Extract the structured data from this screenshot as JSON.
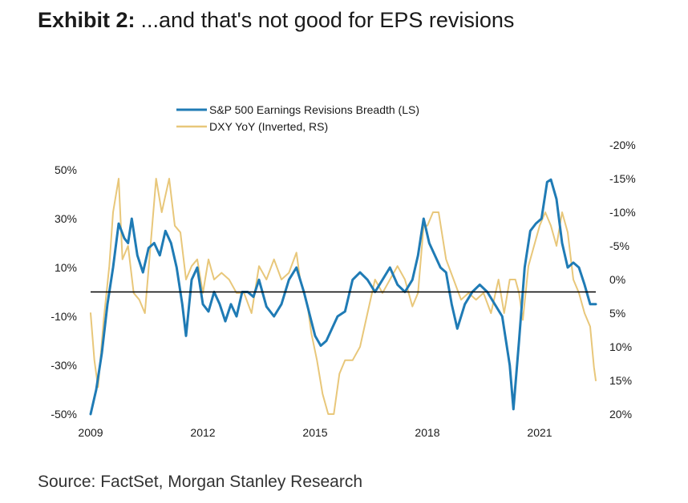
{
  "header": {
    "title_bold": "Exhibit 2:",
    "title_rest": "...and that's not good for EPS revisions"
  },
  "footer": {
    "source": "Source: FactSet, Morgan Stanley Research"
  },
  "chart_data": {
    "type": "line",
    "legend_position": "top-left",
    "grid": false,
    "x_ticks": [
      "2009",
      "2012",
      "2015",
      "2018",
      "2021"
    ],
    "xlim": [
      2009.0,
      2022.5
    ],
    "y_left": {
      "ticks": [
        "50%",
        "30%",
        "10%",
        "-10%",
        "-30%",
        "-50%"
      ],
      "ylim": [
        -50,
        50
      ]
    },
    "y_right": {
      "ticks": [
        "-20%",
        "-15%",
        "-10%",
        "-5%",
        "0%",
        "5%",
        "10%",
        "15%",
        "20%"
      ],
      "ylim": [
        -20,
        20
      ],
      "inverted": true
    },
    "zero_line": 0,
    "colors": {
      "breadth": "#1f7bb5",
      "dxy": "#e8c77a",
      "zero_line": "#000000"
    },
    "series": [
      {
        "name": "S&P 500 Earnings Revisions Breadth (LS)",
        "axis": "left",
        "x": [
          2009.0,
          2009.15,
          2009.3,
          2009.45,
          2009.6,
          2009.75,
          2009.9,
          2010.0,
          2010.1,
          2010.25,
          2010.4,
          2010.55,
          2010.7,
          2010.85,
          2011.0,
          2011.15,
          2011.3,
          2011.45,
          2011.55,
          2011.7,
          2011.85,
          2012.0,
          2012.15,
          2012.3,
          2012.45,
          2012.6,
          2012.75,
          2012.9,
          2013.05,
          2013.2,
          2013.35,
          2013.5,
          2013.7,
          2013.9,
          2014.1,
          2014.3,
          2014.5,
          2014.7,
          2014.9,
          2015.0,
          2015.15,
          2015.3,
          2015.45,
          2015.6,
          2015.8,
          2016.0,
          2016.2,
          2016.4,
          2016.6,
          2016.8,
          2017.0,
          2017.2,
          2017.4,
          2017.6,
          2017.75,
          2017.9,
          2018.05,
          2018.2,
          2018.35,
          2018.5,
          2018.65,
          2018.8,
          2019.0,
          2019.2,
          2019.4,
          2019.6,
          2019.8,
          2020.0,
          2020.1,
          2020.2,
          2020.3,
          2020.45,
          2020.6,
          2020.75,
          2020.9,
          2021.05,
          2021.2,
          2021.3,
          2021.45,
          2021.6,
          2021.75,
          2021.9,
          2022.05,
          2022.2,
          2022.35,
          2022.5
        ],
        "values": [
          -50,
          -40,
          -25,
          -5,
          10,
          28,
          22,
          20,
          30,
          15,
          8,
          18,
          20,
          15,
          25,
          20,
          10,
          -5,
          -18,
          5,
          10,
          -5,
          -8,
          0,
          -5,
          -12,
          -5,
          -10,
          0,
          0,
          -2,
          5,
          -6,
          -10,
          -5,
          5,
          10,
          0,
          -12,
          -18,
          -22,
          -20,
          -15,
          -10,
          -8,
          5,
          8,
          5,
          0,
          5,
          10,
          3,
          0,
          5,
          15,
          30,
          20,
          15,
          10,
          8,
          -5,
          -15,
          -5,
          0,
          3,
          0,
          -5,
          -10,
          -20,
          -30,
          -48,
          -20,
          10,
          25,
          28,
          30,
          45,
          46,
          38,
          20,
          10,
          12,
          10,
          3,
          -5,
          -5
        ]
      },
      {
        "name": "DXY YoY (Inverted, RS)",
        "axis": "right",
        "x": [
          2009.0,
          2009.1,
          2009.2,
          2009.35,
          2009.5,
          2009.6,
          2009.75,
          2009.85,
          2010.0,
          2010.15,
          2010.3,
          2010.45,
          2010.6,
          2010.75,
          2010.9,
          2011.1,
          2011.25,
          2011.4,
          2011.55,
          2011.7,
          2011.85,
          2012.0,
          2012.15,
          2012.3,
          2012.5,
          2012.7,
          2012.9,
          2013.1,
          2013.3,
          2013.5,
          2013.7,
          2013.9,
          2014.1,
          2014.3,
          2014.5,
          2014.6,
          2014.7,
          2014.8,
          2014.9,
          2015.05,
          2015.2,
          2015.35,
          2015.5,
          2015.65,
          2015.8,
          2016.0,
          2016.2,
          2016.4,
          2016.6,
          2016.8,
          2017.0,
          2017.2,
          2017.4,
          2017.6,
          2017.75,
          2017.9,
          2018.0,
          2018.15,
          2018.3,
          2018.5,
          2018.7,
          2018.9,
          2019.1,
          2019.3,
          2019.5,
          2019.7,
          2019.9,
          2020.05,
          2020.2,
          2020.35,
          2020.45,
          2020.55,
          2020.7,
          2020.85,
          2021.0,
          2021.15,
          2021.3,
          2021.45,
          2021.6,
          2021.75,
          2021.9,
          2022.05,
          2022.2,
          2022.35,
          2022.45,
          2022.5
        ],
        "values": [
          5,
          12,
          16,
          6,
          -2,
          -10,
          -15,
          -3,
          -5,
          2,
          3,
          5,
          -5,
          -15,
          -10,
          -15,
          -8,
          -7,
          0,
          -2,
          -3,
          2,
          -3,
          0,
          -1,
          0,
          2,
          2,
          5,
          -2,
          0,
          -3,
          0,
          -1,
          -4,
          0,
          2,
          4,
          8,
          12,
          17,
          20,
          20,
          14,
          12,
          12,
          10,
          5,
          0,
          2,
          0,
          -2,
          0,
          4,
          2,
          -8,
          -8,
          -10,
          -10,
          -3,
          0,
          3,
          2,
          3,
          2,
          5,
          0,
          5,
          0,
          0,
          2,
          6,
          -2,
          -5,
          -8,
          -10,
          -8,
          -5,
          -10,
          -7,
          0,
          2,
          5,
          7,
          13,
          15
        ]
      }
    ]
  }
}
